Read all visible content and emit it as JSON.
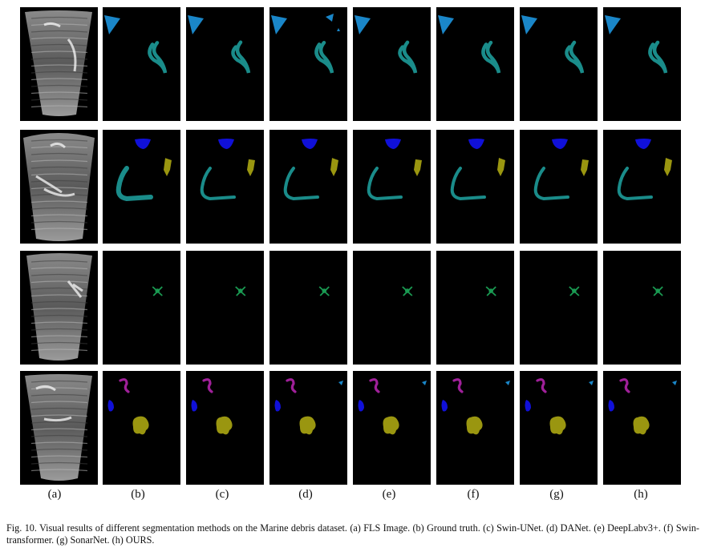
{
  "figure": {
    "column_labels": [
      "(a)",
      "(b)",
      "(c)",
      "(d)",
      "(e)",
      "(f)",
      "(g)",
      "(h)"
    ],
    "caption": "Fig. 10.    Visual results of different segmentation methods on the Marine debris dataset. (a) FLS Image. (b) Ground truth. (c) Swin-UNet. (d) DANet. (e) DeepLabv3+. (f) Swin-transformer. (g) SonarNet. (h) OURS.",
    "colors": {
      "background": "#000000",
      "class_cyan_blue": "#1a86c8",
      "class_teal": "#1a8c8a",
      "class_blue": "#1010d8",
      "class_olive": "#9a9610",
      "class_green": "#1a9a52",
      "class_magenta": "#a0209a"
    }
  }
}
